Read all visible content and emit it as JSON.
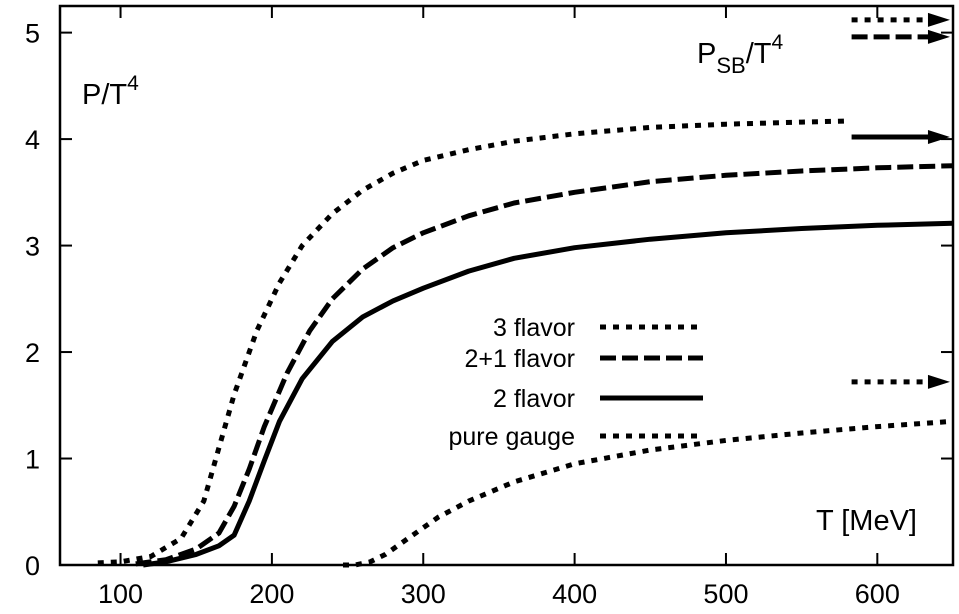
{
  "chart_data": {
    "type": "line",
    "title": "",
    "ylabel": "P/T",
    "ylabel_sup": "4",
    "xlabel": "T [MeV]",
    "sb_label": {
      "main": "P",
      "sub": "SB",
      "div": "/T",
      "sup": "4"
    },
    "xlim": [
      60,
      650
    ],
    "ylim": [
      0,
      5.25
    ],
    "xticks": [
      100,
      200,
      300,
      400,
      500,
      600
    ],
    "yticks": [
      0,
      1,
      2,
      3,
      4,
      5
    ],
    "grid": false,
    "legend_position": "center",
    "series": [
      {
        "name": "3 flavor",
        "style": "dotted",
        "x": [
          85,
          100,
          120,
          140,
          155,
          165,
          175,
          190,
          205,
          220,
          240,
          260,
          280,
          300,
          330,
          360,
          400,
          450,
          500,
          550,
          580
        ],
        "y": [
          0.02,
          0.03,
          0.08,
          0.25,
          0.6,
          1.1,
          1.6,
          2.2,
          2.65,
          3.0,
          3.3,
          3.52,
          3.68,
          3.8,
          3.9,
          3.98,
          4.05,
          4.11,
          4.14,
          4.16,
          4.17
        ],
        "sb": 5.12
      },
      {
        "name": "2+1 flavor",
        "style": "dashed",
        "x": [
          110,
          130,
          150,
          165,
          175,
          185,
          195,
          210,
          225,
          240,
          260,
          280,
          300,
          330,
          360,
          400,
          450,
          500,
          550,
          600,
          650
        ],
        "y": [
          0.01,
          0.05,
          0.15,
          0.3,
          0.55,
          0.9,
          1.3,
          1.8,
          2.2,
          2.5,
          2.78,
          2.98,
          3.12,
          3.28,
          3.4,
          3.5,
          3.6,
          3.66,
          3.7,
          3.73,
          3.75
        ],
        "sb": 4.96
      },
      {
        "name": "2 flavor",
        "style": "solid",
        "x": [
          115,
          130,
          150,
          165,
          175,
          185,
          195,
          205,
          220,
          240,
          260,
          280,
          300,
          330,
          360,
          400,
          450,
          500,
          550,
          600,
          650
        ],
        "y": [
          0.0,
          0.03,
          0.1,
          0.18,
          0.28,
          0.6,
          0.98,
          1.35,
          1.75,
          2.1,
          2.33,
          2.48,
          2.6,
          2.76,
          2.88,
          2.98,
          3.06,
          3.12,
          3.16,
          3.19,
          3.21
        ],
        "sb": 4.02
      },
      {
        "name": "pure gauge",
        "style": "dotted",
        "x": [
          247,
          255,
          265,
          275,
          290,
          310,
          330,
          360,
          400,
          450,
          500,
          550,
          600,
          650
        ],
        "y": [
          0.0,
          0.0,
          0.03,
          0.1,
          0.25,
          0.45,
          0.6,
          0.78,
          0.95,
          1.08,
          1.17,
          1.24,
          1.3,
          1.35
        ],
        "sb": 1.72
      }
    ]
  }
}
